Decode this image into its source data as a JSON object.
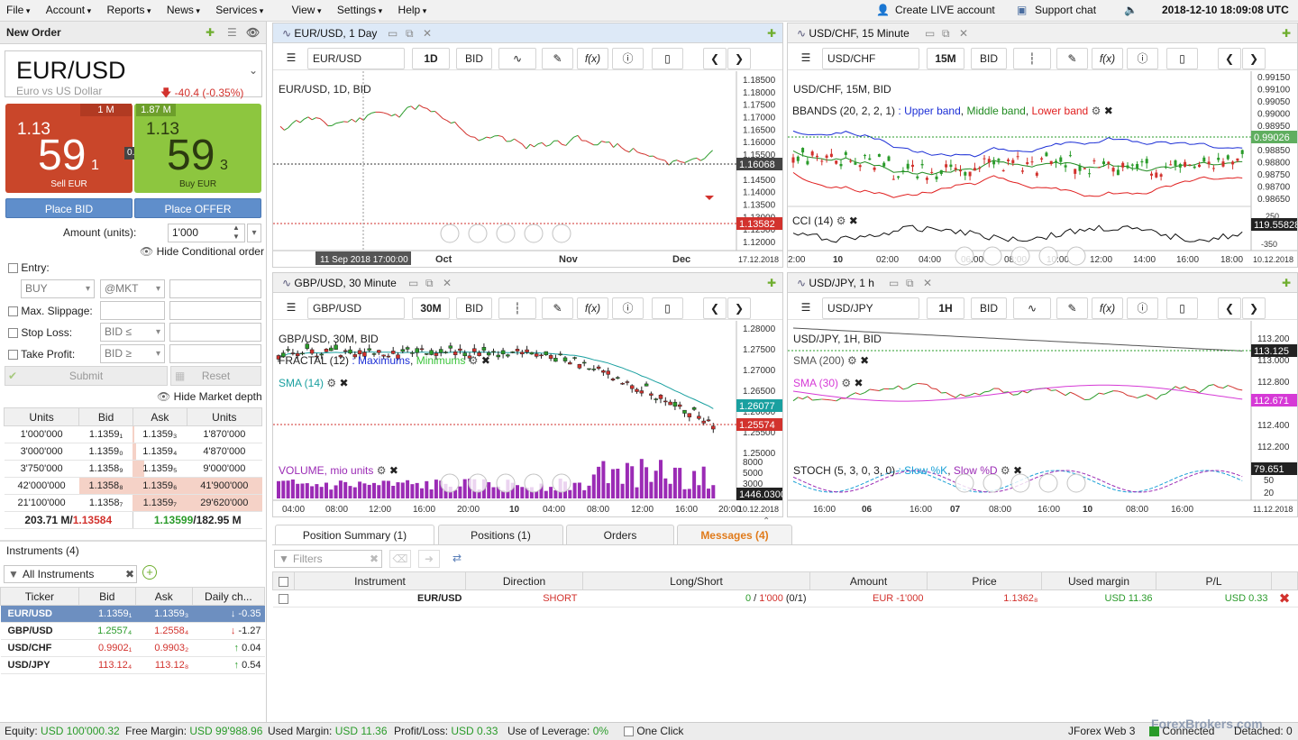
{
  "menu": [
    "File",
    "Account",
    "Reports",
    "News",
    "Services",
    "View",
    "Settings",
    "Help"
  ],
  "top_right": {
    "live": "Create LIVE account",
    "support": "Support chat",
    "datetime": "2018-12-10 18:09:08 UTC"
  },
  "order": {
    "title": "New Order",
    "symbol": "EUR/USD",
    "desc": "Euro vs US Dollar",
    "change": "-40.4 (-0.35%)",
    "sell": {
      "vol": "1 M",
      "big": "1.13",
      "pips": "59",
      "frac": "1",
      "label": "Sell EUR"
    },
    "buy": {
      "vol": "1.87 M",
      "big": "1.13",
      "pips": "59",
      "frac": "3",
      "label": "Buy EUR"
    },
    "spread": "0.2",
    "place_bid": "Place BID",
    "place_offer": "Place OFFER",
    "amount_label": "Amount (units):",
    "amount": "1'000",
    "hide_cond": "Hide Conditional order",
    "entry": "Entry:",
    "entry_side": "BUY",
    "entry_type": "@MKT",
    "max_slip": "Max. Slippage:",
    "stop_loss": "Stop Loss:",
    "sl_type": "BID ≤",
    "take_profit": "Take Profit:",
    "tp_type": "BID ≥",
    "submit": "Submit",
    "reset": "Reset",
    "hide_depth": "Hide Market depth"
  },
  "depth": {
    "headers": [
      "Units",
      "Bid",
      "Ask",
      "Units"
    ],
    "rows": [
      [
        "1'000'000",
        "1.1359₁",
        "1.1359₃",
        "1'870'000"
      ],
      [
        "3'000'000",
        "1.1359₀",
        "1.1359₄",
        "4'870'000"
      ],
      [
        "3'750'000",
        "1.1358₉",
        "1.1359₅",
        "9'000'000"
      ],
      [
        "42'000'000",
        "1.1358₈",
        "1.1359₆",
        "41'900'000"
      ],
      [
        "21'100'000",
        "1.1358₇",
        "1.1359₇",
        "29'620'000"
      ]
    ],
    "total_bid_units": "203.71 M/",
    "total_bid_price": "1.13584",
    "total_ask_price": "1.13599",
    "total_ask_units": "/182.95 M"
  },
  "instruments": {
    "title": "Instruments (4)",
    "filter": "All Instruments",
    "headers": [
      "Ticker",
      "Bid",
      "Ask",
      "Daily ch..."
    ],
    "rows": [
      {
        "ticker": "EUR/USD",
        "bid": "1.1359₁",
        "ask": "1.1359₃",
        "chg": "-0.35",
        "arrow": "↓"
      },
      {
        "ticker": "GBP/USD",
        "bid": "1.2557₄",
        "ask": "1.2558₄",
        "chg": "-1.27",
        "arrow": "↓"
      },
      {
        "ticker": "USD/CHF",
        "bid": "0.9902₁",
        "ask": "0.9903₂",
        "chg": "0.04",
        "arrow": "↑"
      },
      {
        "ticker": "USD/JPY",
        "bid": "113.12₄",
        "ask": "113.12₈",
        "chg": "0.54",
        "arrow": "↑"
      }
    ]
  },
  "charts": {
    "c1": {
      "title": "EUR/USD, 1 Day",
      "inst": "EUR/USD",
      "period": "1D",
      "side": "BID",
      "label": "EUR/USD, 1D, BID",
      "yticks": [
        "1.18500",
        "1.18000",
        "1.17500",
        "1.17000",
        "1.16500",
        "1.16000",
        "1.15500",
        "1.15000",
        "1.14500",
        "1.14000",
        "1.13500",
        "1.13000",
        "1.12500",
        "1.12000"
      ],
      "ref": "1.16068",
      "cur": "1.13582",
      "xticks": [
        "Oct",
        "Nov",
        "Dec"
      ],
      "date": "17.12.2018",
      "cursor": "11 Sep 2018 17:00:00"
    },
    "c2": {
      "title": "USD/CHF, 15 Minute",
      "inst": "USD/CHF",
      "period": "15M",
      "side": "BID",
      "label": "USD/CHF, 15M, BID",
      "bb": "BBANDS (20, 2, 2, 1)",
      "upper": "Upper band",
      "middle": "Middle band",
      "lower": "Lower band",
      "cci": "CCI (14)",
      "yticks": [
        "0.99150",
        "0.99100",
        "0.99050",
        "0.99000",
        "0.98950",
        "0.98900",
        "0.98850",
        "0.98800",
        "0.98750",
        "0.98700",
        "0.98650"
      ],
      "cur": "0.99026",
      "cciv": "119.55828",
      "cci_ticks": [
        "250",
        "-350"
      ],
      "xticks": [
        "2:00",
        "10",
        "02:00",
        "04:00",
        "06:00",
        "08:00",
        "10:00",
        "12:00",
        "14:00",
        "16:00",
        "18:00"
      ],
      "date": "10.12.2018"
    },
    "c3": {
      "title": "GBP/USD, 30 Minute",
      "inst": "GBP/USD",
      "period": "30M",
      "side": "BID",
      "label": "GBP/USD, 30M, BID",
      "fractal": "FRACTAL (12)",
      "max": "Maximums",
      "min": "Minimums",
      "sma": "SMA (14)",
      "vol": "VOLUME, mio units",
      "yticks": [
        "1.28000",
        "1.27500",
        "1.27000",
        "1.26500",
        "1.26000",
        "1.25500",
        "1.25000"
      ],
      "sma_v": "1.26077",
      "cur": "1.25574",
      "vticks": [
        "8000",
        "5000",
        "3000",
        "1000"
      ],
      "volv": "1446.0300",
      "xticks": [
        "04:00",
        "08:00",
        "12:00",
        "16:00",
        "20:00",
        "10",
        "04:00",
        "08:00",
        "12:00",
        "16:00",
        "20:00"
      ],
      "date": "10.12.2018"
    },
    "c4": {
      "title": "USD/JPY, 1 h",
      "inst": "USD/JPY",
      "period": "1H",
      "side": "BID",
      "label": "USD/JPY, 1H, BID",
      "sma200": "SMA (200)",
      "sma30": "SMA (30)",
      "stoch": "STOCH (5, 3, 0, 3, 0)",
      "slowk": "Slow %K",
      "slowd": "Slow %D",
      "yticks": [
        "113.200",
        "113.000",
        "112.800",
        "112.600",
        "112.400",
        "112.200"
      ],
      "cur": "113.125",
      "sma30v": "112.671",
      "stoch_ticks": [
        "50",
        "20"
      ],
      "stochv": "79.651",
      "xticks": [
        "16:00",
        "06",
        "16:00",
        "07",
        "08:00",
        "16:00",
        "10",
        "08:00",
        "16:00"
      ],
      "date": "11.12.2018"
    }
  },
  "bottom": {
    "tabs": [
      "Position Summary (1)",
      "Positions (1)",
      "Orders",
      "Messages (4)"
    ],
    "filter": "Filters",
    "headers": [
      "Instrument",
      "Direction",
      "Long/Short",
      "Amount",
      "Price",
      "Used margin",
      "P/L"
    ],
    "row": {
      "inst": "EUR/USD",
      "dir": "SHORT",
      "long": "0",
      "short": "1'000",
      "ratio": "(0/1)",
      "amount": "EUR -1'000",
      "price": "1.1362₈",
      "margin": "USD 11.36",
      "pl": "USD 0.33"
    }
  },
  "status": {
    "equity_l": "Equity:",
    "equity": "USD 100'000.32",
    "free_l": "Free Margin:",
    "free": "USD 99'988.96",
    "used_l": "Used Margin:",
    "used": "USD 11.36",
    "pl_l": "Profit/Loss:",
    "pl": "USD 0.33",
    "lev_l": "Use of Leverage:",
    "lev": "0%",
    "oneclick": "One Click",
    "app": "JForex Web 3",
    "connected": "Connected",
    "detached": "Detached: 0",
    "brand": "ForexBrokers.com"
  },
  "colors": {
    "sell": "#c9462a",
    "buy": "#8dc63f",
    "up": "#2a9b2a",
    "down": "#d2322d",
    "upper": "#1c2fd6",
    "middle": "#1f8a1f",
    "lower": "#e02020",
    "sma": "#d63ad6",
    "vol": "#9b2bb5",
    "msg": "#e07a1a"
  }
}
